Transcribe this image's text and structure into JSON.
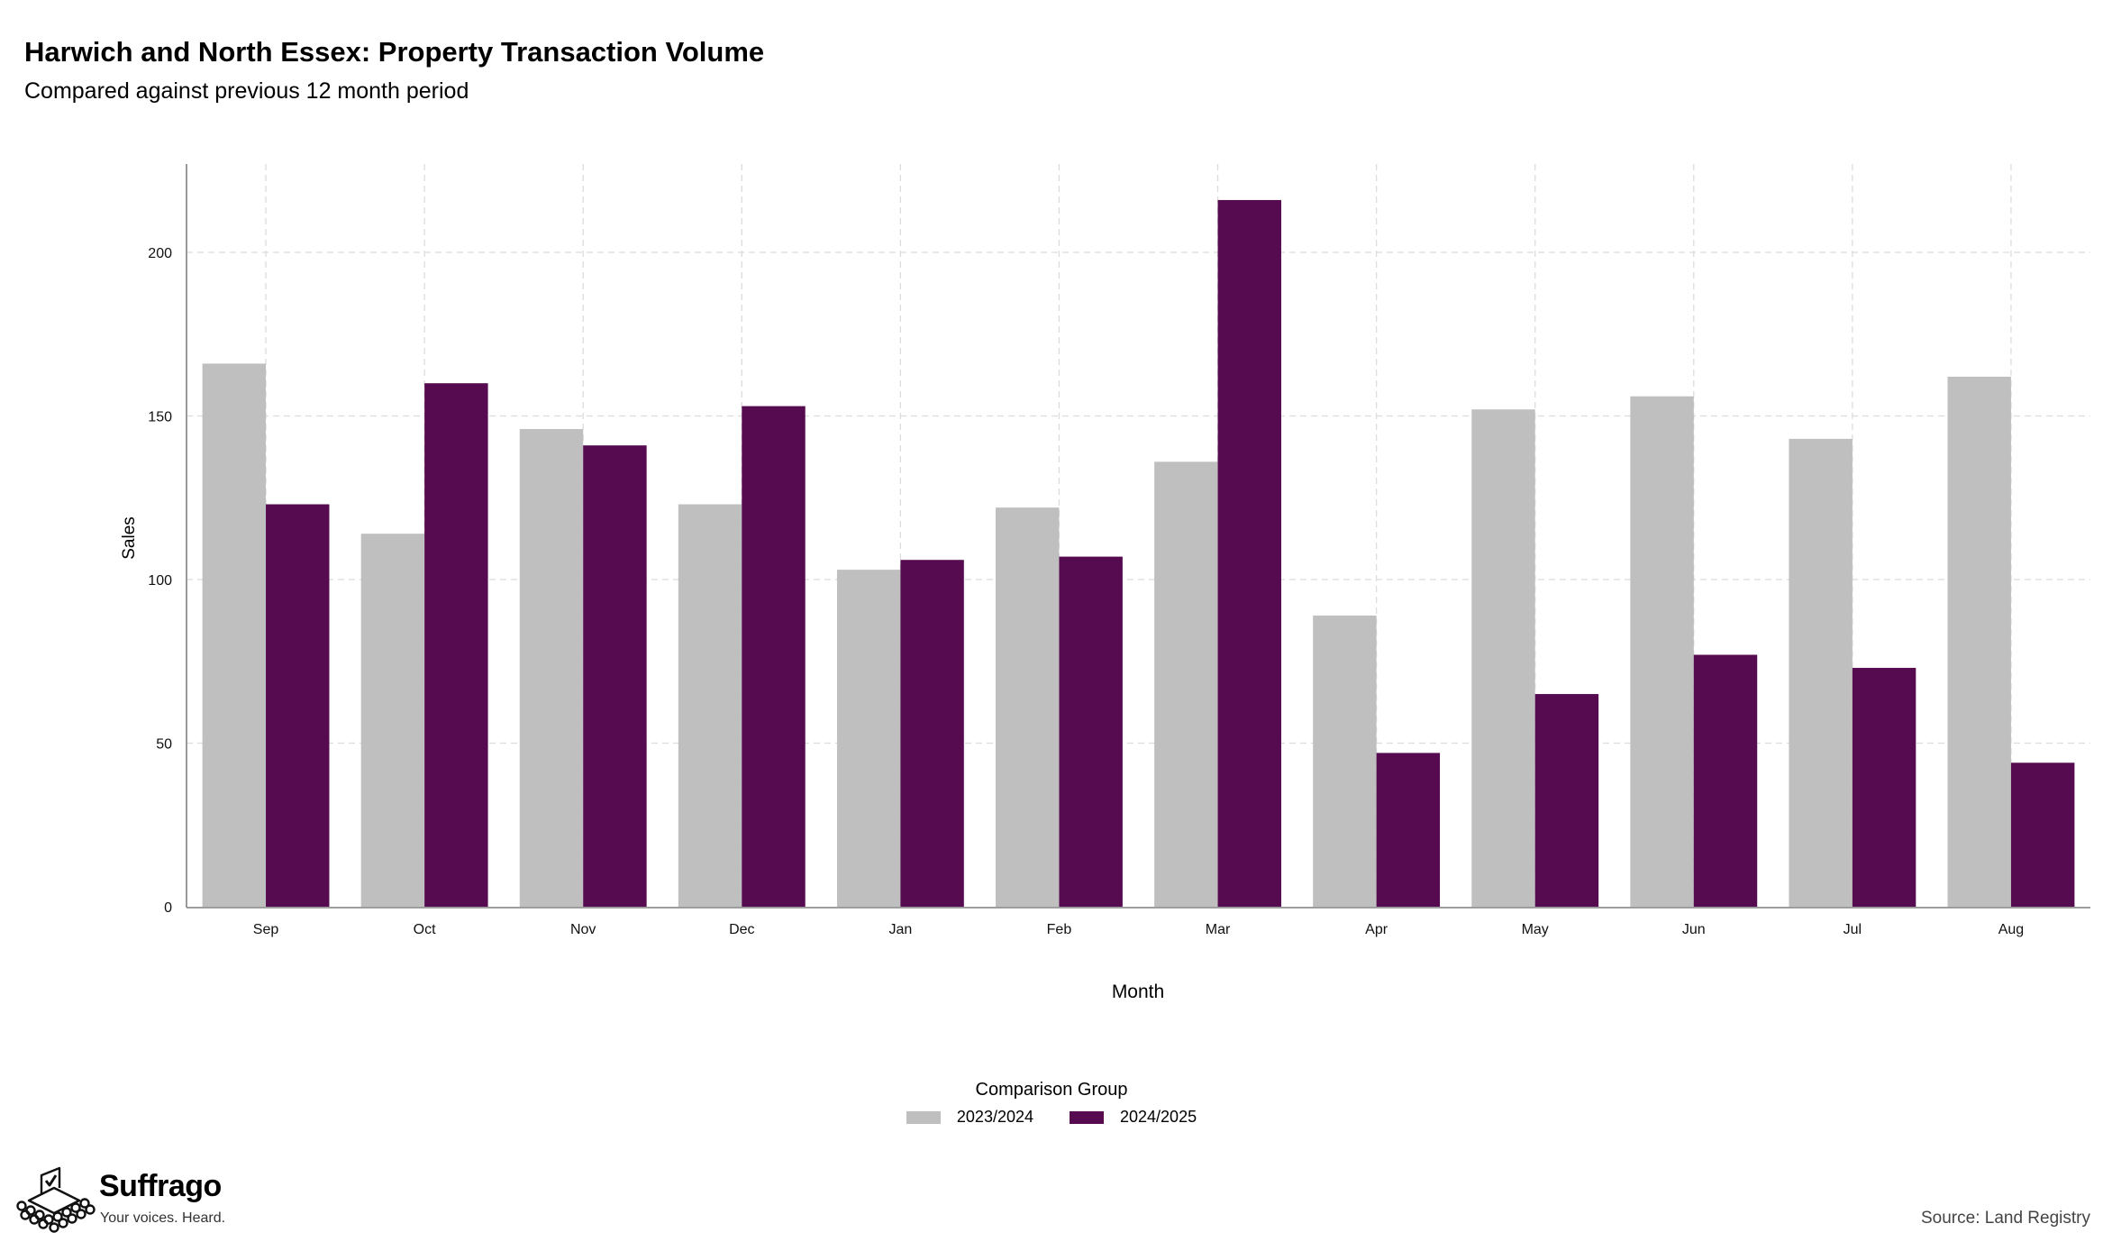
{
  "chart_data": {
    "type": "bar",
    "title": "Harwich and North Essex: Property Transaction Volume",
    "subtitle": "Compared against previous 12 month period",
    "xlabel": "Month",
    "ylabel": "Sales",
    "categories": [
      "Sep",
      "Oct",
      "Nov",
      "Dec",
      "Jan",
      "Feb",
      "Mar",
      "Apr",
      "May",
      "Jun",
      "Jul",
      "Aug"
    ],
    "series": [
      {
        "name": "2023/2024",
        "color": "#bfbfbf",
        "values": [
          166,
          114,
          146,
          123,
          103,
          122,
          136,
          89,
          152,
          156,
          143,
          162
        ]
      },
      {
        "name": "2024/2025",
        "color": "#560b51",
        "values": [
          123,
          160,
          141,
          153,
          106,
          107,
          216,
          47,
          65,
          77,
          73,
          44
        ]
      }
    ],
    "yticks": [
      0,
      50,
      100,
      150,
      200
    ],
    "ylim": [
      0,
      227
    ],
    "grid": true,
    "legend_title": "Comparison Group",
    "legend_position": "bottom",
    "source": "Source: Land Registry"
  },
  "branding": {
    "name": "Suffrago",
    "tagline": "Your voices. Heard.",
    "icon": "ballot-box-icon"
  }
}
